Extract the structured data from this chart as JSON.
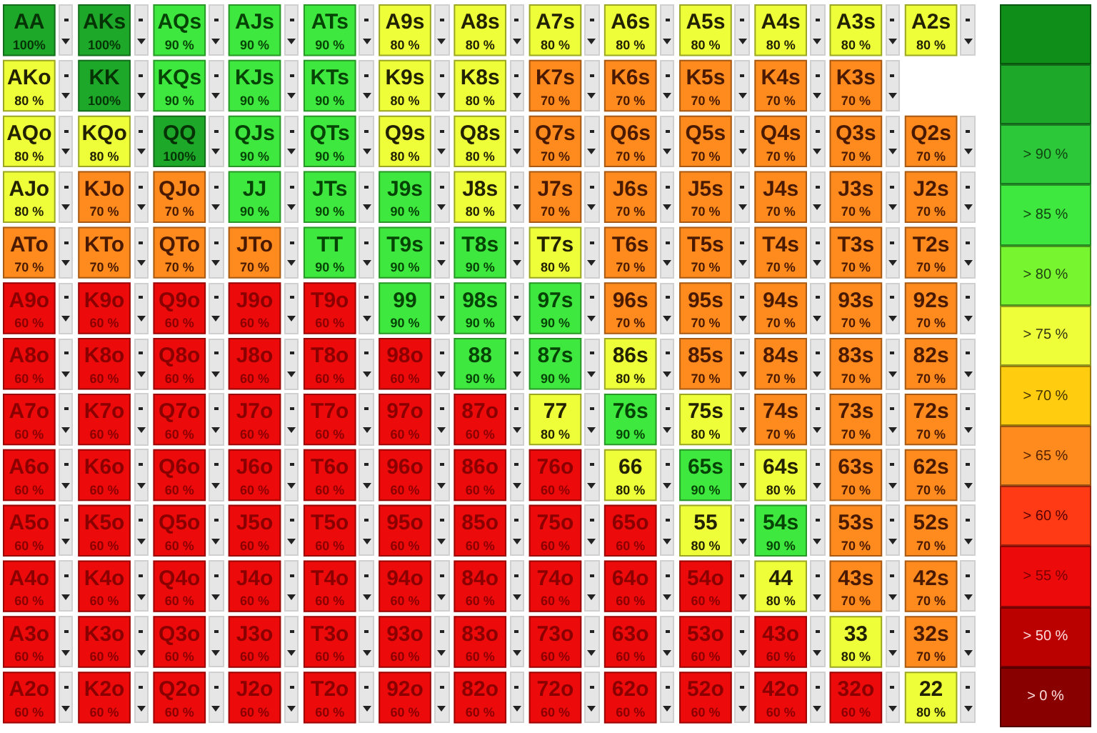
{
  "chart_data": {
    "type": "heatmap",
    "categories": [
      null,
      null,
      null,
      null,
      null,
      null,
      null,
      null,
      null,
      null,
      null,
      null,
      null
    ],
    "y_categories": [
      null,
      null,
      null,
      null,
      null,
      null,
      null,
      null,
      null,
      null,
      null,
      null,
      null
    ],
    "cells": [
      [
        100,
        100,
        90,
        90,
        90,
        80,
        80,
        80,
        80,
        80,
        80,
        80,
        80
      ],
      [
        80,
        100,
        90,
        90,
        90,
        80,
        80,
        70,
        70,
        70,
        70,
        70,
        null
      ],
      [
        80,
        80,
        100,
        90,
        90,
        80,
        80,
        70,
        70,
        70,
        70,
        70,
        70
      ],
      [
        80,
        70,
        70,
        90,
        90,
        90,
        80,
        70,
        70,
        70,
        70,
        70,
        70
      ],
      [
        70,
        70,
        70,
        70,
        90,
        90,
        90,
        80,
        70,
        70,
        70,
        70,
        70
      ],
      [
        60,
        60,
        60,
        60,
        60,
        90,
        90,
        90,
        70,
        70,
        70,
        70,
        70
      ],
      [
        60,
        60,
        60,
        60,
        60,
        60,
        90,
        90,
        80,
        70,
        70,
        70,
        70
      ],
      [
        60,
        60,
        60,
        60,
        60,
        60,
        60,
        80,
        90,
        80,
        70,
        70,
        70
      ],
      [
        60,
        60,
        60,
        60,
        60,
        60,
        60,
        60,
        80,
        90,
        80,
        70,
        70
      ],
      [
        60,
        60,
        60,
        60,
        60,
        60,
        60,
        60,
        60,
        80,
        90,
        70,
        70
      ],
      [
        60,
        60,
        60,
        60,
        60,
        60,
        60,
        60,
        60,
        60,
        80,
        70,
        70
      ],
      [
        60,
        60,
        60,
        60,
        60,
        60,
        60,
        60,
        60,
        60,
        60,
        80,
        70
      ],
      [
        60,
        60,
        60,
        60,
        60,
        60,
        60,
        60,
        60,
        60,
        60,
        60,
        80
      ]
    ],
    "cell_labels": [
      [
        "100%",
        "100%",
        "90 %",
        "90 %",
        "90 %",
        "80 %",
        "80 %",
        "80 %",
        "80 %",
        "80 %",
        "80 %",
        "80 %",
        "80 %"
      ],
      [
        "80 %",
        "100%",
        "90 %",
        "90 %",
        "90 %",
        "80 %",
        "80 %",
        "70 %",
        "70 %",
        "70 %",
        "70 %",
        "70 %",
        null
      ],
      [
        "80 %",
        "80 %",
        "100%",
        "90 %",
        "90 %",
        "80 %",
        "80 %",
        "70 %",
        "70 %",
        "70 %",
        "70 %",
        "70 %",
        "70 %"
      ],
      [
        "80 %",
        "70 %",
        "70 %",
        "90 %",
        "90 %",
        "90 %",
        "80 %",
        "70 %",
        "70 %",
        "70 %",
        "70 %",
        "70 %",
        "70 %"
      ],
      [
        "70 %",
        "70 %",
        "70 %",
        "70 %",
        "90 %",
        "90 %",
        "90 %",
        "80 %",
        "70 %",
        "70 %",
        "70 %",
        "70 %",
        "70 %"
      ],
      [
        "60 %",
        "60 %",
        "60 %",
        "60 %",
        "60 %",
        "90 %",
        "90 %",
        "90 %",
        "70 %",
        "70 %",
        "70 %",
        "70 %",
        "70 %"
      ],
      [
        "60 %",
        "60 %",
        "60 %",
        "60 %",
        "60 %",
        "60 %",
        "90 %",
        "90 %",
        "80 %",
        "70 %",
        "70 %",
        "70 %",
        "70 %"
      ],
      [
        "60 %",
        "60 %",
        "60 %",
        "60 %",
        "60 %",
        "60 %",
        "60 %",
        "80 %",
        "90 %",
        "80 %",
        "70 %",
        "70 %",
        "70 %"
      ],
      [
        "60 %",
        "60 %",
        "60 %",
        "60 %",
        "60 %",
        "60 %",
        "60 %",
        "60 %",
        "80 %",
        "90 %",
        "80 %",
        "70 %",
        "70 %"
      ],
      [
        "60 %",
        "60 %",
        "60 %",
        "60 %",
        "60 %",
        "60 %",
        "60 %",
        "60 %",
        "60 %",
        "80 %",
        "90 %",
        "70 %",
        "70 %"
      ],
      [
        "60 %",
        "60 %",
        "60 %",
        "60 %",
        "60 %",
        "60 %",
        "60 %",
        "60 %",
        "60 %",
        "60 %",
        "80 %",
        "70 %",
        "70 %"
      ],
      [
        "60 %",
        "60 %",
        "60 %",
        "60 %",
        "60 %",
        "60 %",
        "60 %",
        "60 %",
        "60 %",
        "60 %",
        "60 %",
        "80 %",
        "70 %"
      ],
      [
        "60 %",
        "60 %",
        "60 %",
        "60 %",
        "60 %",
        "60 %",
        "60 %",
        "60 %",
        "60 %",
        "60 %",
        "60 %",
        "60 %",
        "80 %"
      ]
    ],
    "annotations": [
      "> 90 %",
      "> 85 %",
      "> 80 %",
      "> 75 %",
      "> 70 %",
      "> 65 %",
      "> 60 %",
      "> 55 %",
      "> 50 %",
      "> 0 %",
      "AA",
      "AKs",
      "AQs",
      "AJs",
      "ATs",
      "A9s",
      "A8s",
      "A7s",
      "A6s",
      "A5s",
      "A4s",
      "A3s",
      "A2s",
      "AKo",
      "KK",
      "KQs",
      "KJs",
      "KTs",
      "K9s",
      "K8s",
      "K7s",
      "K6s",
      "K5s",
      "K4s",
      "K3s",
      "AQo",
      "KQo",
      "QQ",
      "QJs",
      "QTs",
      "Q9s",
      "Q8s",
      "Q7s",
      "Q6s",
      "Q5s",
      "Q4s",
      "Q3s",
      "Q2s",
      "AJo",
      "KJo",
      "QJo",
      "JJ",
      "JTs",
      "J9s",
      "J8s",
      "J7s",
      "J6s",
      "J5s",
      "J4s",
      "J3s",
      "J2s",
      "ATo",
      "KTo",
      "QTo",
      "JTo",
      "TT",
      "T9s",
      "T8s",
      "T7s",
      "T6s",
      "T5s",
      "T4s",
      "T3s",
      "T2s",
      "A9o",
      "K9o",
      "Q9o",
      "J9o",
      "T9o",
      "99",
      "98s",
      "97s",
      "96s",
      "95s",
      "94s",
      "93s",
      "92s",
      "A8o",
      "K8o",
      "Q8o",
      "J8o",
      "T8o",
      "98o",
      "88",
      "87s",
      "86s",
      "85s",
      "84s",
      "83s",
      "82s",
      "A7o",
      "K7o",
      "Q7o",
      "J7o",
      "T7o",
      "97o",
      "87o",
      "77",
      "76s",
      "75s",
      "74s",
      "73s",
      "72s",
      "A6o",
      "K6o",
      "Q6o",
      "J6o",
      "T6o",
      "96o",
      "86o",
      "76o",
      "66",
      "65s",
      "64s",
      "63s",
      "62s",
      "A5o",
      "K5o",
      "Q5o",
      "J5o",
      "T5o",
      "95o",
      "85o",
      "75o",
      "65o",
      "55",
      "54s",
      "53s",
      "52s",
      "A4o",
      "K4o",
      "Q4o",
      "J4o",
      "T4o",
      "94o",
      "84o",
      "74o",
      "64o",
      "54o",
      "44",
      "43s",
      "42s",
      "A3o",
      "K3o",
      "Q3o",
      "J3o",
      "T3o",
      "93o",
      "83o",
      "73o",
      "63o",
      "53o",
      "43o",
      "33",
      "32s",
      "A2o",
      "K2o",
      "Q2o",
      "J2o",
      "T2o",
      "92o",
      "82o",
      "72o",
      "62o",
      "52o",
      "42o",
      "32o",
      "22"
    ]
  }
}
